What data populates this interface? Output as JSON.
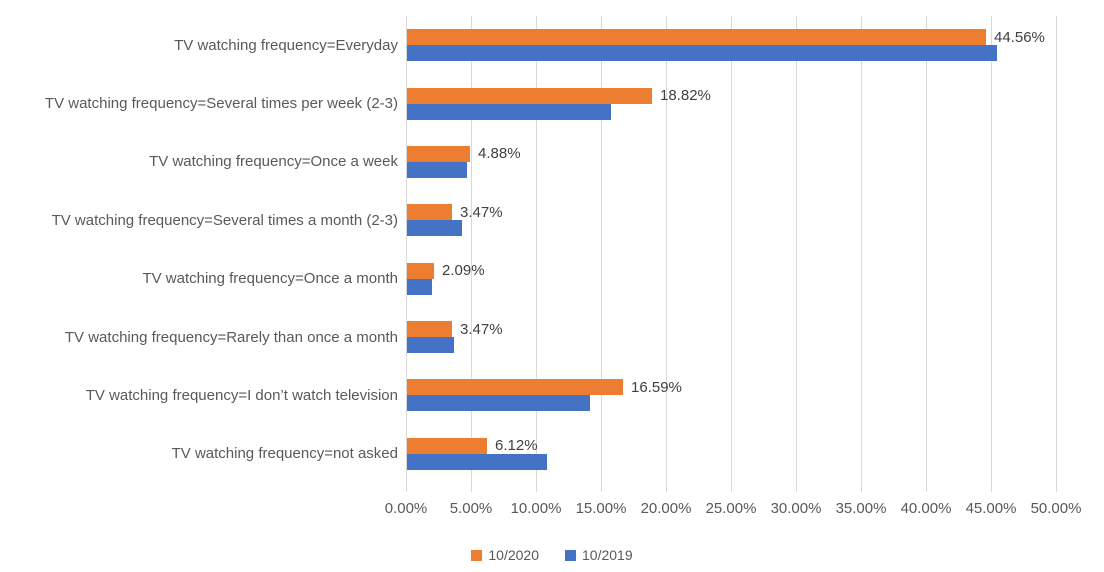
{
  "chart_data": {
    "type": "bar",
    "orientation": "horizontal",
    "title": "",
    "xlabel": "",
    "ylabel": "",
    "categories": [
      "TV watching frequency=Everyday",
      "TV watching frequency=Several times per week (2-3)",
      "TV watching frequency=Once a week",
      "TV watching frequency=Several times a month (2-3)",
      "TV watching frequency=Once a month",
      "TV watching frequency=Rarely than once a month",
      "TV watching frequency=I don’t watch television",
      "TV watching frequency=not asked"
    ],
    "series": [
      {
        "name": "10/2020",
        "color": "#ED7D31",
        "values": [
          44.56,
          18.82,
          4.88,
          3.47,
          2.09,
          3.47,
          16.59,
          6.12
        ],
        "data_labels": [
          "44.56%",
          "18.82%",
          "4.88%",
          "3.47%",
          "2.09%",
          "3.47%",
          "16.59%",
          "6.12%"
        ]
      },
      {
        "name": "10/2019",
        "color": "#4472C4",
        "values": [
          45.4,
          15.7,
          4.6,
          4.2,
          1.9,
          3.6,
          14.1,
          10.8
        ],
        "data_labels": []
      }
    ],
    "x_ticks": [
      "0.00%",
      "5.00%",
      "10.00%",
      "15.00%",
      "20.00%",
      "25.00%",
      "30.00%",
      "35.00%",
      "40.00%",
      "45.00%",
      "50.00%"
    ],
    "xlim": [
      0,
      50
    ],
    "grid": true,
    "legend_position": "bottom",
    "legend_entries": [
      {
        "label": "10/2020",
        "color": "#ED7D31"
      },
      {
        "label": "10/2019",
        "color": "#4472C4"
      }
    ]
  },
  "colors": {
    "background": "#FFFFFF",
    "gridline": "#D9D9D9",
    "axis_text": "#595959",
    "category_text": "#595959",
    "data_label_text": "#404040",
    "series_2020": "#ED7D31",
    "series_2019": "#4472C4"
  }
}
